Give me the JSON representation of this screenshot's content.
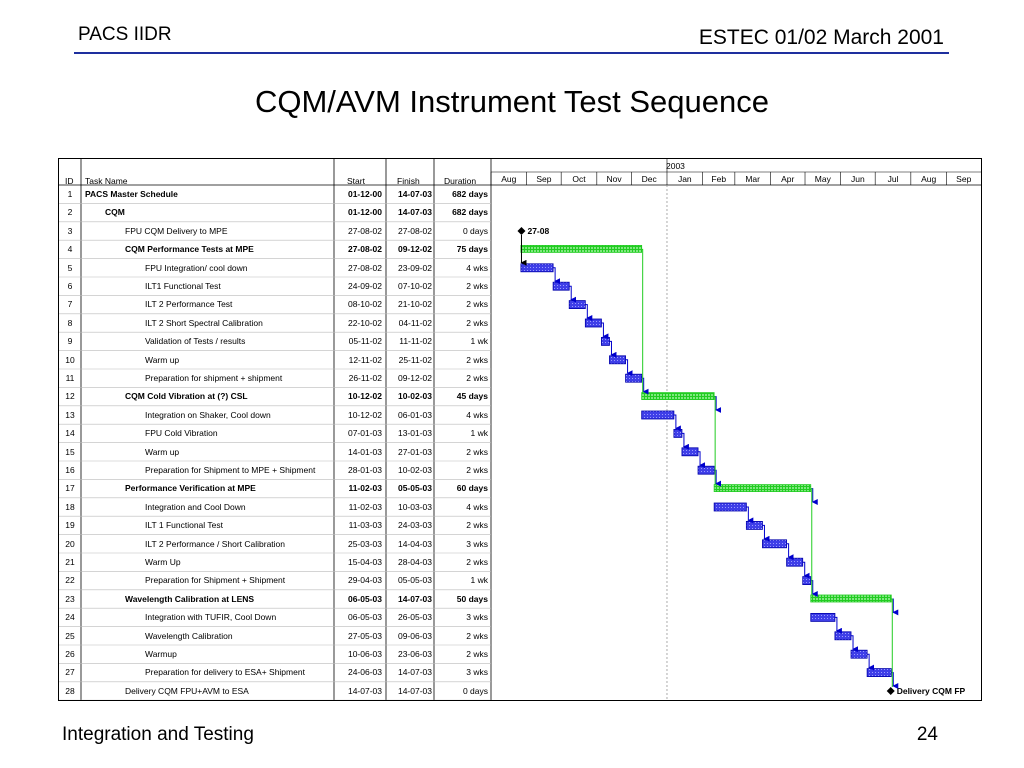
{
  "header": {
    "left": "PACS IIDR",
    "right": "ESTEC 01/02 March 2001"
  },
  "title": "CQM/AVM Instrument Test Sequence",
  "footer": {
    "left": "Integration and Testing",
    "right": "24"
  },
  "colors": {
    "rule": "#1e2f9e",
    "task_bar": "#3f3fe8",
    "summary_bar": "#33dd33",
    "link": "#0000cc",
    "summary_link": "#22cc22"
  },
  "chart_data": {
    "type": "gantt",
    "columns": {
      "id": "ID",
      "name": "Task Name",
      "start": "Start",
      "finish": "Finish",
      "duration": "Duration"
    },
    "timescale": {
      "year_label": "2003",
      "months": [
        "Aug",
        "Sep",
        "Oct",
        "Nov",
        "Dec",
        "Jan",
        "Feb",
        "Mar",
        "Apr",
        "May",
        "Jun",
        "Jul",
        "Aug",
        "Sep"
      ],
      "range": [
        "2002-08-01",
        "2003-09-30"
      ],
      "year_start": "2003-01-01"
    },
    "tasks": [
      {
        "id": "1",
        "name": "PACS Master Schedule",
        "start": "01-12-00",
        "finish": "14-07-03",
        "duration": "682 days",
        "level": 0,
        "bold": true
      },
      {
        "id": "2",
        "name": "CQM",
        "start": "01-12-00",
        "finish": "14-07-03",
        "duration": "682 days",
        "level": 1,
        "bold": true
      },
      {
        "id": "3",
        "name": "FPU CQM Delivery to MPE",
        "start": "27-08-02",
        "finish": "27-08-02",
        "duration": "0 days",
        "level": 2,
        "milestone": true,
        "label": "27-08"
      },
      {
        "id": "4",
        "name": "CQM Performance Tests at MPE",
        "start": "27-08-02",
        "finish": "09-12-02",
        "duration": "75 days",
        "level": 2,
        "bold": true,
        "summary": true
      },
      {
        "id": "5",
        "name": "FPU Integration/ cool down",
        "start": "27-08-02",
        "finish": "23-09-02",
        "duration": "4 wks",
        "level": 3
      },
      {
        "id": "6",
        "name": "ILT1 Functional Test",
        "start": "24-09-02",
        "finish": "07-10-02",
        "duration": "2 wks",
        "level": 3
      },
      {
        "id": "7",
        "name": "ILT 2 Performance Test",
        "start": "08-10-02",
        "finish": "21-10-02",
        "duration": "2 wks",
        "level": 3
      },
      {
        "id": "8",
        "name": "ILT 2 Short Spectral Calibration",
        "start": "22-10-02",
        "finish": "04-11-02",
        "duration": "2 wks",
        "level": 3
      },
      {
        "id": "9",
        "name": "Validation of Tests / results",
        "start": "05-11-02",
        "finish": "11-11-02",
        "duration": "1 wk",
        "level": 3
      },
      {
        "id": "10",
        "name": "Warm up",
        "start": "12-11-02",
        "finish": "25-11-02",
        "duration": "2 wks",
        "level": 3
      },
      {
        "id": "11",
        "name": "Preparation for shipment + shipment",
        "start": "26-11-02",
        "finish": "09-12-02",
        "duration": "2 wks",
        "level": 3
      },
      {
        "id": "12",
        "name": "CQM Cold Vibration at (?) CSL",
        "start": "10-12-02",
        "finish": "10-02-03",
        "duration": "45 days",
        "level": 2,
        "bold": true,
        "summary": true
      },
      {
        "id": "13",
        "name": "Integration on Shaker, Cool down",
        "start": "10-12-02",
        "finish": "06-01-03",
        "duration": "4 wks",
        "level": 3
      },
      {
        "id": "14",
        "name": "FPU Cold Vibration",
        "start": "07-01-03",
        "finish": "13-01-03",
        "duration": "1 wk",
        "level": 3
      },
      {
        "id": "15",
        "name": "Warm up",
        "start": "14-01-03",
        "finish": "27-01-03",
        "duration": "2 wks",
        "level": 3
      },
      {
        "id": "16",
        "name": "Preparation for Shipment to MPE + Shipment",
        "start": "28-01-03",
        "finish": "10-02-03",
        "duration": "2 wks",
        "level": 3
      },
      {
        "id": "17",
        "name": "Performance Verification at MPE",
        "start": "11-02-03",
        "finish": "05-05-03",
        "duration": "60 days",
        "level": 2,
        "bold": true,
        "summary": true
      },
      {
        "id": "18",
        "name": "Integration and Cool Down",
        "start": "11-02-03",
        "finish": "10-03-03",
        "duration": "4 wks",
        "level": 3
      },
      {
        "id": "19",
        "name": "ILT 1 Functional Test",
        "start": "11-03-03",
        "finish": "24-03-03",
        "duration": "2 wks",
        "level": 3
      },
      {
        "id": "20",
        "name": "ILT 2 Performance / Short Calibration",
        "start": "25-03-03",
        "finish": "14-04-03",
        "duration": "3 wks",
        "level": 3
      },
      {
        "id": "21",
        "name": "Warm Up",
        "start": "15-04-03",
        "finish": "28-04-03",
        "duration": "2 wks",
        "level": 3
      },
      {
        "id": "22",
        "name": "Preparation for Shipment + Shipment",
        "start": "29-04-03",
        "finish": "05-05-03",
        "duration": "1 wk",
        "level": 3
      },
      {
        "id": "23",
        "name": "Wavelength Calibration at LENS",
        "start": "06-05-03",
        "finish": "14-07-03",
        "duration": "50 days",
        "level": 2,
        "bold": true,
        "summary": true
      },
      {
        "id": "24",
        "name": "Integration with TUFIR, Cool Down",
        "start": "06-05-03",
        "finish": "26-05-03",
        "duration": "3 wks",
        "level": 3
      },
      {
        "id": "25",
        "name": "Wavelength Calibration",
        "start": "27-05-03",
        "finish": "09-06-03",
        "duration": "2 wks",
        "level": 3
      },
      {
        "id": "26",
        "name": "Warmup",
        "start": "10-06-03",
        "finish": "23-06-03",
        "duration": "2 wks",
        "level": 3
      },
      {
        "id": "27",
        "name": "Preparation for delivery to ESA+ Shipment",
        "start": "24-06-03",
        "finish": "14-07-03",
        "duration": "3 wks",
        "level": 3
      },
      {
        "id": "28",
        "name": "Delivery  CQM FPU+AVM  to ESA",
        "start": "14-07-03",
        "finish": "14-07-03",
        "duration": "0 days",
        "level": 2,
        "milestone": true,
        "label": "Delivery  CQM FP"
      }
    ]
  }
}
